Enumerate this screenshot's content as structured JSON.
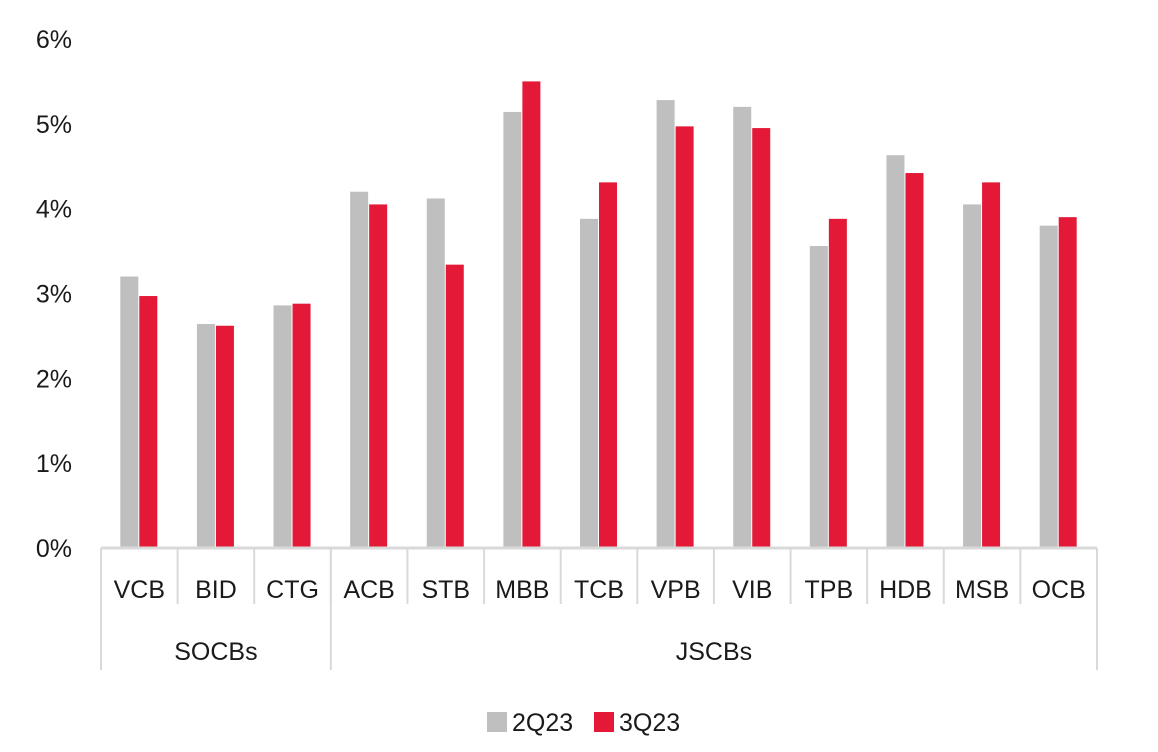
{
  "chart_data": {
    "type": "bar",
    "categories": [
      "VCB",
      "BID",
      "CTG",
      "ACB",
      "STB",
      "MBB",
      "TCB",
      "VPB",
      "VIB",
      "TPB",
      "HDB",
      "MSB",
      "OCB"
    ],
    "groups": [
      {
        "label": "SOCBs",
        "categories": [
          "VCB",
          "BID",
          "CTG"
        ]
      },
      {
        "label": "JSCBs",
        "categories": [
          "ACB",
          "STB",
          "MBB",
          "TCB",
          "VPB",
          "VIB",
          "TPB",
          "HDB",
          "MSB",
          "OCB"
        ]
      }
    ],
    "series": [
      {
        "name": "2Q23",
        "color": "#bfbfbf",
        "values": [
          3.2,
          2.64,
          2.86,
          4.2,
          4.12,
          5.14,
          3.88,
          5.28,
          5.2,
          3.56,
          4.63,
          4.05,
          3.8
        ]
      },
      {
        "name": "3Q23",
        "color": "#e31937",
        "values": [
          2.97,
          2.62,
          2.88,
          4.05,
          3.34,
          5.5,
          4.31,
          4.97,
          4.95,
          3.88,
          4.42,
          4.31,
          3.9
        ]
      }
    ],
    "ylim": [
      0,
      6
    ],
    "yticks": [
      0,
      1,
      2,
      3,
      4,
      5,
      6
    ],
    "ytick_labels": [
      "0%",
      "1%",
      "2%",
      "3%",
      "4%",
      "5%",
      "6%"
    ],
    "title": "",
    "xlabel": "",
    "ylabel": "",
    "grid": false,
    "legend": "bottom-center"
  }
}
